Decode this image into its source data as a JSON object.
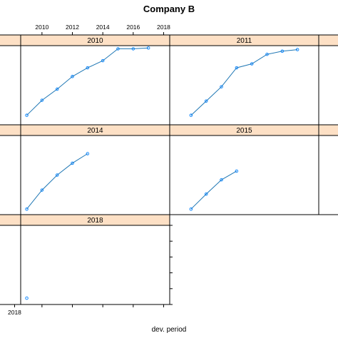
{
  "chart_data": {
    "type": "line",
    "title": "Company B",
    "xlabel": "dev. period",
    "ylabel": "",
    "xlim": [
      2008.6,
      2018.4
    ],
    "ylim": [
      0,
      100
    ],
    "x_ticks": [
      2010,
      2012,
      2014,
      2016,
      2018
    ],
    "colors": {
      "strip": "#fde0c5",
      "line": "#1f77b4",
      "point": "#0080ff",
      "frame": "#000000"
    },
    "panels": [
      {
        "name": "2010",
        "x": [
          2009,
          2010,
          2011,
          2012,
          2013,
          2014,
          2015,
          2016,
          2017
        ],
        "y": [
          12,
          31,
          45,
          61,
          72,
          81,
          96,
          96,
          97
        ]
      },
      {
        "name": "2011",
        "x": [
          2010,
          2011,
          2012,
          2013,
          2014,
          2015,
          2016,
          2017
        ],
        "y": [
          12,
          30,
          48,
          72,
          77,
          89,
          93,
          95
        ]
      },
      {
        "name": "2014",
        "x": [
          2009,
          2010,
          2011,
          2012,
          2013
        ],
        "y": [
          7,
          31,
          50,
          65,
          77
        ]
      },
      {
        "name": "2015",
        "x": [
          2010,
          2011,
          2012,
          2013
        ],
        "y": [
          7,
          26,
          44,
          55
        ]
      },
      {
        "name": "2018",
        "x": [
          2009
        ],
        "y": [
          8
        ]
      }
    ]
  }
}
